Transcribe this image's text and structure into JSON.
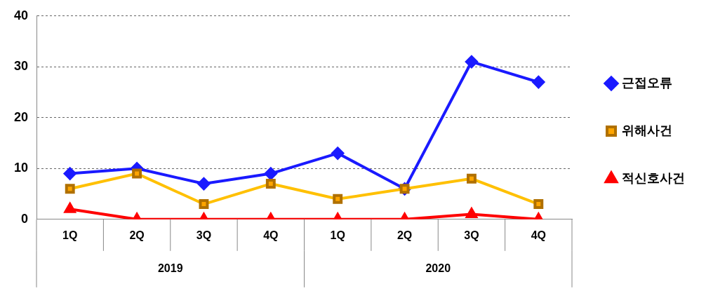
{
  "chart_data": {
    "type": "line",
    "categories": [
      "1Q",
      "2Q",
      "3Q",
      "4Q",
      "1Q",
      "2Q",
      "3Q",
      "4Q"
    ],
    "series": [
      {
        "name": "근접오류",
        "color": "#1a1aff",
        "marker": "diamond",
        "values": [
          9,
          10,
          7,
          9,
          13,
          6,
          31,
          27
        ]
      },
      {
        "name": "위해사건",
        "color": "#ffc000",
        "marker": "square",
        "values": [
          6,
          9,
          3,
          7,
          4,
          6,
          8,
          3
        ]
      },
      {
        "name": "적신호사건",
        "color": "#ff0000",
        "marker": "triangle",
        "values": [
          2,
          0,
          0,
          0,
          0,
          0,
          1,
          0
        ]
      }
    ],
    "annotations": [
      "2019",
      "2020"
    ],
    "ylim": [
      0,
      40
    ],
    "yticks": [
      0,
      10,
      20,
      30,
      40
    ],
    "grid": "y",
    "legend": "right",
    "line_style": "solid"
  }
}
